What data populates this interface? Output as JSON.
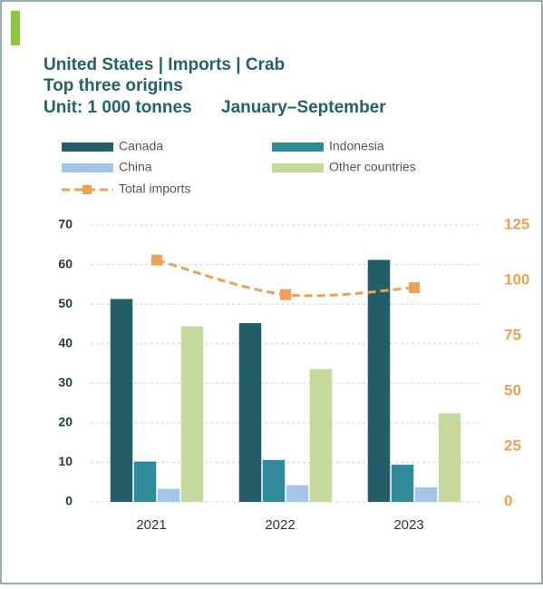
{
  "chart_data": {
    "type": "bar",
    "title": "United States | Imports | Crab",
    "subtitle": "Top three origins",
    "unit": "Unit: 1 000 tonnes",
    "period": "January–September",
    "categories": [
      "2021",
      "2022",
      "2023"
    ],
    "series": [
      {
        "name": "Canada",
        "color": "#235d68",
        "values": [
          51.3,
          45.2,
          61.2
        ]
      },
      {
        "name": "Indonesia",
        "color": "#318a9c",
        "values": [
          10.2,
          10.6,
          9.4
        ]
      },
      {
        "name": "China",
        "color": "#a3c6e8",
        "values": [
          3.3,
          4.2,
          3.7
        ]
      },
      {
        "name": "Other countries",
        "color": "#c4d99b",
        "values": [
          44.4,
          33.6,
          22.4
        ]
      },
      {
        "name": "Total imports",
        "color": "#f0a055",
        "type": "line",
        "axis": "y2",
        "values": [
          109.2,
          93.6,
          96.7
        ]
      }
    ],
    "ylim": [
      0,
      70
    ],
    "yticks": [
      0,
      10,
      20,
      30,
      40,
      50,
      60,
      70
    ],
    "y2lim": [
      0,
      125
    ],
    "y2ticks": [
      0,
      25,
      50,
      75,
      100,
      125
    ],
    "grid": true
  }
}
